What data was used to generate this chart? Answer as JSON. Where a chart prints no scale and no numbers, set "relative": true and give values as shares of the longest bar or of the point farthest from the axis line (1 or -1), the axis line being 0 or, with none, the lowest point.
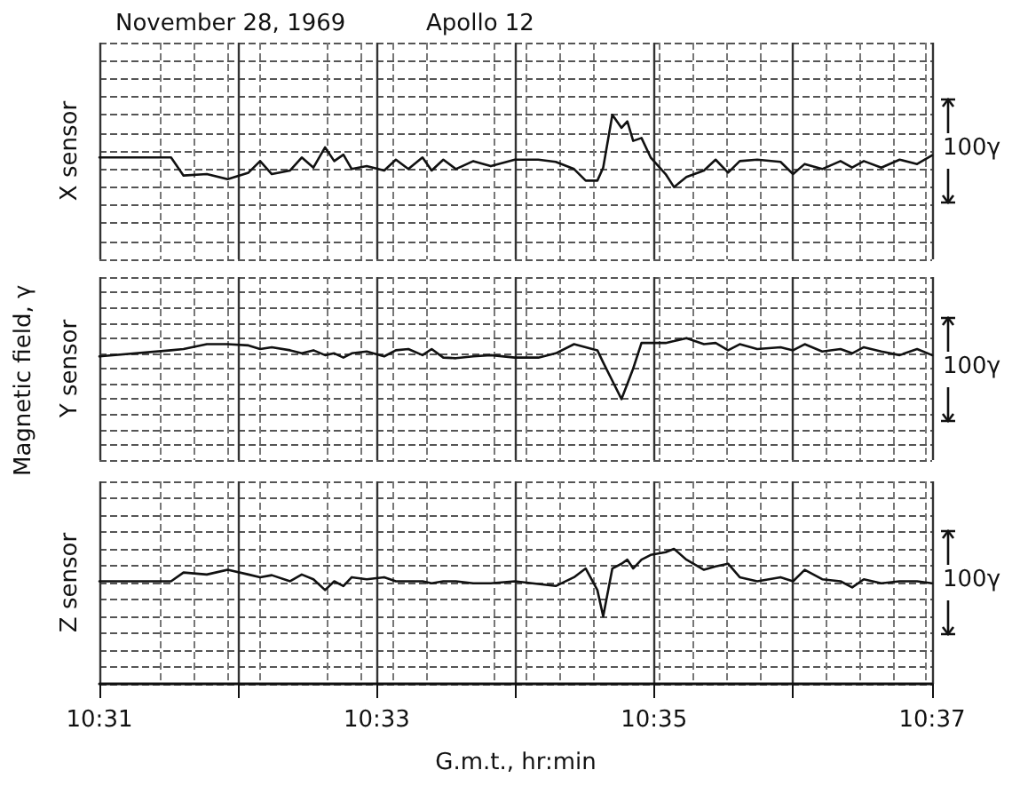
{
  "chart_data": [
    {
      "type": "line",
      "title": "November 28, 1969",
      "subtitle": "Apollo 12",
      "ylabel": "X sensor",
      "relative": true,
      "grid": true,
      "tick_labels": false,
      "annotations": [
        "100γ"
      ],
      "xlim": [
        10.5167,
        10.6167
      ],
      "xticks": [
        {
          "value": 10.5167,
          "label": null
        },
        {
          "value": 10.5333,
          "label": null
        },
        {
          "value": 10.55,
          "label": null
        },
        {
          "value": 10.5667,
          "label": null
        },
        {
          "value": 10.5833,
          "label": null
        },
        {
          "value": 10.6,
          "label": null
        },
        {
          "value": 10.6167,
          "label": null
        }
      ],
      "x": [
        10.5167,
        10.5253,
        10.5268,
        10.5296,
        10.5321,
        10.5346,
        10.536,
        10.5374,
        10.5396,
        10.541,
        10.5424,
        10.5438,
        10.5449,
        10.546,
        10.547,
        10.5488,
        10.5509,
        10.5523,
        10.5538,
        10.5555,
        10.5566,
        10.558,
        10.5595,
        10.5616,
        10.5637,
        10.5666,
        10.5694,
        10.5715,
        10.5737,
        10.5751,
        10.5765,
        10.5772,
        10.5783,
        10.5794,
        10.5801,
        10.5808,
        10.5818,
        10.5829,
        10.5847,
        10.5857,
        10.5872,
        10.5893,
        10.5907,
        10.5922,
        10.5936,
        10.5957,
        10.5985,
        10.6,
        10.6014,
        10.6035,
        10.6057,
        10.6071,
        10.6085,
        10.6106,
        10.6128,
        10.6149,
        10.6167
      ],
      "series": [
        {
          "color": "#111111",
          "values": [
            0.41,
            0.41,
            0.16,
            0.18,
            0.11,
            0.2,
            0.36,
            0.18,
            0.23,
            0.41,
            0.27,
            0.55,
            0.36,
            0.45,
            0.25,
            0.29,
            0.23,
            0.38,
            0.25,
            0.41,
            0.23,
            0.38,
            0.25,
            0.36,
            0.29,
            0.38,
            0.38,
            0.35,
            0.25,
            0.09,
            0.09,
            0.27,
            1,
            0.82,
            0.91,
            0.64,
            0.68,
            0.41,
            0.18,
            0,
            0.14,
            0.23,
            0.38,
            0.2,
            0.36,
            0.38,
            0.35,
            0.18,
            0.32,
            0.25,
            0.36,
            0.27,
            0.36,
            0.27,
            0.38,
            0.32,
            0.44
          ]
        }
      ]
    },
    {
      "type": "line",
      "ylabel": "Y sensor",
      "relative": true,
      "grid": true,
      "tick_labels": false,
      "annotations": [
        "100γ",
        "Magnetic field, γ"
      ],
      "xlim": [
        10.5167,
        10.6167
      ],
      "xticks": [
        {
          "value": 10.5167,
          "label": null
        },
        {
          "value": 10.5333,
          "label": null
        },
        {
          "value": 10.55,
          "label": null
        },
        {
          "value": 10.5667,
          "label": null
        },
        {
          "value": 10.5833,
          "label": null
        },
        {
          "value": 10.6,
          "label": null
        },
        {
          "value": 10.6167,
          "label": null
        }
      ],
      "x": [
        10.5167,
        10.5253,
        10.5268,
        10.5296,
        10.5321,
        10.5346,
        10.536,
        10.5374,
        10.5396,
        10.541,
        10.5424,
        10.5438,
        10.5449,
        10.546,
        10.547,
        10.5488,
        10.5509,
        10.5523,
        10.5538,
        10.5555,
        10.5566,
        10.558,
        10.5595,
        10.5616,
        10.5637,
        10.5666,
        10.5694,
        10.5715,
        10.5737,
        10.5751,
        10.5765,
        10.5772,
        10.5783,
        10.5794,
        10.5801,
        10.5808,
        10.5818,
        10.5829,
        10.5847,
        10.5857,
        10.5872,
        10.5893,
        10.5907,
        10.5922,
        10.5936,
        10.5957,
        10.5985,
        10.6,
        10.6014,
        10.6035,
        10.6057,
        10.6071,
        10.6085,
        10.6106,
        10.6128,
        10.6149,
        10.6167
      ],
      "series": [
        {
          "color": "#111111",
          "values": [
            0.7,
            0.8,
            0.82,
            0.9,
            0.9,
            0.88,
            0.82,
            0.85,
            0.8,
            0.75,
            0.8,
            0.72,
            0.75,
            0.68,
            0.75,
            0.78,
            0.7,
            0.8,
            0.82,
            0.72,
            0.82,
            0.68,
            0.67,
            0.7,
            0.72,
            0.68,
            0.68,
            0.75,
            0.9,
            0.85,
            0.8,
            0.6,
            0.3,
            0,
            0.25,
            0.5,
            0.92,
            0.92,
            0.92,
            0.95,
            1,
            0.9,
            0.92,
            0.8,
            0.9,
            0.82,
            0.85,
            0.8,
            0.9,
            0.78,
            0.82,
            0.75,
            0.85,
            0.78,
            0.72,
            0.82,
            0.72
          ]
        }
      ]
    },
    {
      "type": "line",
      "ylabel": "Z sensor",
      "xlabel": "G.m.t., hr:min",
      "relative": true,
      "grid": true,
      "tick_labels": "x",
      "annotations": [
        "100γ"
      ],
      "xlim": [
        10.5167,
        10.6167
      ],
      "xticks": [
        {
          "value": 10.5167,
          "label": "10:31"
        },
        {
          "value": 10.5333,
          "label": null
        },
        {
          "value": 10.55,
          "label": "10:33"
        },
        {
          "value": 10.5667,
          "label": null
        },
        {
          "value": 10.5833,
          "label": "10:35"
        },
        {
          "value": 10.6,
          "label": null
        },
        {
          "value": 10.6167,
          "label": "10:37"
        }
      ],
      "x": [
        10.5167,
        10.5253,
        10.5268,
        10.5296,
        10.5321,
        10.5346,
        10.536,
        10.5374,
        10.5396,
        10.541,
        10.5424,
        10.5438,
        10.5449,
        10.546,
        10.547,
        10.5488,
        10.5509,
        10.5523,
        10.5538,
        10.5555,
        10.5566,
        10.558,
        10.5595,
        10.5616,
        10.5637,
        10.5666,
        10.5694,
        10.5715,
        10.5737,
        10.5751,
        10.5765,
        10.5772,
        10.5783,
        10.5794,
        10.5801,
        10.5808,
        10.5818,
        10.5829,
        10.5847,
        10.5857,
        10.5872,
        10.5893,
        10.5907,
        10.5922,
        10.5936,
        10.5957,
        10.5985,
        10.6,
        10.6014,
        10.6035,
        10.6057,
        10.6071,
        10.6085,
        10.6106,
        10.6128,
        10.6149,
        10.6167
      ],
      "series": [
        {
          "color": "#111111",
          "values": [
            0.52,
            0.52,
            0.65,
            0.62,
            0.69,
            0.62,
            0.58,
            0.61,
            0.52,
            0.62,
            0.55,
            0.39,
            0.52,
            0.45,
            0.58,
            0.55,
            0.58,
            0.52,
            0.52,
            0.52,
            0.49,
            0.52,
            0.52,
            0.49,
            0.49,
            0.52,
            0.48,
            0.45,
            0.58,
            0.71,
            0.39,
            0,
            0.71,
            0.78,
            0.84,
            0.71,
            0.84,
            0.91,
            0.95,
            1,
            0.84,
            0.69,
            0.74,
            0.78,
            0.58,
            0.52,
            0.58,
            0.52,
            0.69,
            0.55,
            0.52,
            0.43,
            0.55,
            0.49,
            0.52,
            0.52,
            0.49
          ]
        }
      ]
    }
  ]
}
